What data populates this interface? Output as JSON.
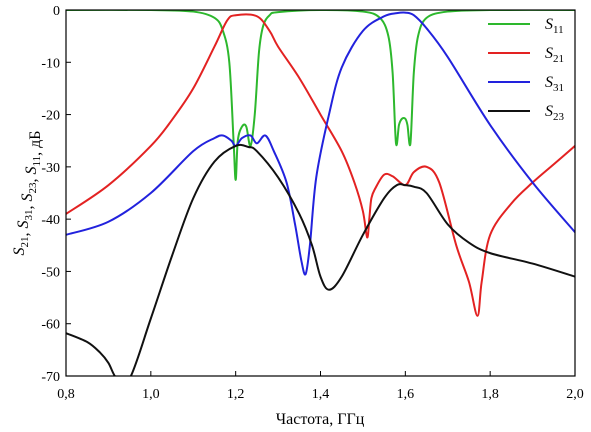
{
  "chart_data": {
    "type": "line",
    "xlabel": "Частота, ГГц",
    "ylabel_parts": [
      {
        "t": "S",
        "sub": "21"
      },
      {
        "t": ", "
      },
      {
        "t": "S",
        "sub": "31"
      },
      {
        "t": ", "
      },
      {
        "t": "S",
        "sub": "23"
      },
      {
        "t": ", "
      },
      {
        "t": "S",
        "sub": "11"
      },
      {
        "t": ", дБ"
      }
    ],
    "xlim": [
      0.8,
      2.0
    ],
    "ylim": [
      -70,
      0
    ],
    "grid": false,
    "legend_position": "top-right",
    "x_ticks": [
      0.8,
      1.0,
      1.2,
      1.4,
      1.6,
      1.8,
      2.0
    ],
    "x_tick_labels": [
      "0,8",
      "1,0",
      "1,2",
      "1,4",
      "1,6",
      "1,8",
      "2,0"
    ],
    "y_ticks": [
      0,
      -10,
      -20,
      -30,
      -40,
      -50,
      -60,
      -70
    ],
    "y_tick_labels": [
      "0",
      "-10",
      "-20",
      "-30",
      "-40",
      "-50",
      "-60",
      "-70"
    ],
    "series": [
      {
        "name": "S11",
        "legend_base": "S",
        "legend_sub": "11",
        "color": "#2db82d",
        "x": [
          0.8,
          1.0,
          1.1,
          1.15,
          1.17,
          1.185,
          1.195,
          1.2,
          1.205,
          1.215,
          1.225,
          1.235,
          1.245,
          1.255,
          1.265,
          1.28,
          1.3,
          1.4,
          1.5,
          1.54,
          1.56,
          1.57,
          1.578,
          1.585,
          1.592,
          1.6,
          1.605,
          1.612,
          1.62,
          1.63,
          1.65,
          1.7,
          1.8,
          2.0
        ],
        "y": [
          0,
          0,
          -0.3,
          -1.5,
          -4,
          -10,
          -25,
          -32.5,
          -25,
          -22.3,
          -22.3,
          -26,
          -20,
          -8,
          -3,
          -1,
          -0.4,
          0,
          -0.3,
          -1.5,
          -5,
          -12,
          -25.5,
          -22,
          -20.8,
          -20.8,
          -22,
          -25.5,
          -12,
          -5,
          -1.5,
          -0.3,
          0,
          0
        ]
      },
      {
        "name": "S21",
        "legend_base": "S",
        "legend_sub": "21",
        "color": "#e32222",
        "x": [
          0.8,
          0.9,
          1.0,
          1.05,
          1.1,
          1.15,
          1.18,
          1.2,
          1.25,
          1.28,
          1.3,
          1.35,
          1.4,
          1.45,
          1.48,
          1.5,
          1.51,
          1.515,
          1.52,
          1.53,
          1.55,
          1.57,
          1.6,
          1.62,
          1.65,
          1.68,
          1.72,
          1.75,
          1.77,
          1.78,
          1.8,
          1.85,
          1.9,
          1.95,
          2.0
        ],
        "y": [
          -39,
          -33.5,
          -26,
          -21,
          -15,
          -7,
          -2,
          -1,
          -1.2,
          -4,
          -7,
          -13,
          -20,
          -27,
          -33,
          -38.5,
          -43.5,
          -40,
          -36,
          -34,
          -31.5,
          -31.8,
          -33.5,
          -31,
          -30,
          -33,
          -45,
          -52,
          -58.5,
          -52,
          -43,
          -37,
          -33,
          -29.5,
          -26
        ]
      },
      {
        "name": "S31",
        "legend_base": "S",
        "legend_sub": "31",
        "color": "#2222dd",
        "x": [
          0.8,
          0.9,
          1.0,
          1.1,
          1.15,
          1.17,
          1.19,
          1.2,
          1.215,
          1.235,
          1.25,
          1.27,
          1.29,
          1.32,
          1.34,
          1.355,
          1.365,
          1.375,
          1.39,
          1.42,
          1.45,
          1.5,
          1.55,
          1.58,
          1.6,
          1.62,
          1.65,
          1.7,
          1.8,
          1.9,
          2.0
        ],
        "y": [
          -43,
          -40.5,
          -35,
          -27,
          -24.5,
          -24,
          -25,
          -26,
          -24.5,
          -24,
          -25.5,
          -24,
          -27,
          -33,
          -41,
          -48,
          -50.5,
          -45,
          -32,
          -20,
          -11,
          -4,
          -1.2,
          -0.6,
          -0.5,
          -1,
          -3.5,
          -9,
          -22,
          -33,
          -42.5
        ]
      },
      {
        "name": "S23",
        "legend_base": "S",
        "legend_sub": "23",
        "color": "#111111",
        "x": [
          0.8,
          0.85,
          0.88,
          0.9,
          0.92,
          0.95,
          1.0,
          1.05,
          1.1,
          1.15,
          1.2,
          1.23,
          1.25,
          1.3,
          1.35,
          1.38,
          1.4,
          1.42,
          1.45,
          1.5,
          1.55,
          1.58,
          1.6,
          1.62,
          1.65,
          1.7,
          1.75,
          1.8,
          1.9,
          2.0
        ],
        "y": [
          -61.8,
          -63.5,
          -65.5,
          -67.5,
          -70.5,
          -70.5,
          -59,
          -47,
          -36,
          -29,
          -26,
          -26.2,
          -27,
          -32,
          -39,
          -45,
          -51,
          -53.5,
          -51,
          -43,
          -36,
          -33.5,
          -33.5,
          -33.8,
          -35,
          -41,
          -44.5,
          -46.5,
          -48.5,
          -51
        ]
      }
    ]
  }
}
